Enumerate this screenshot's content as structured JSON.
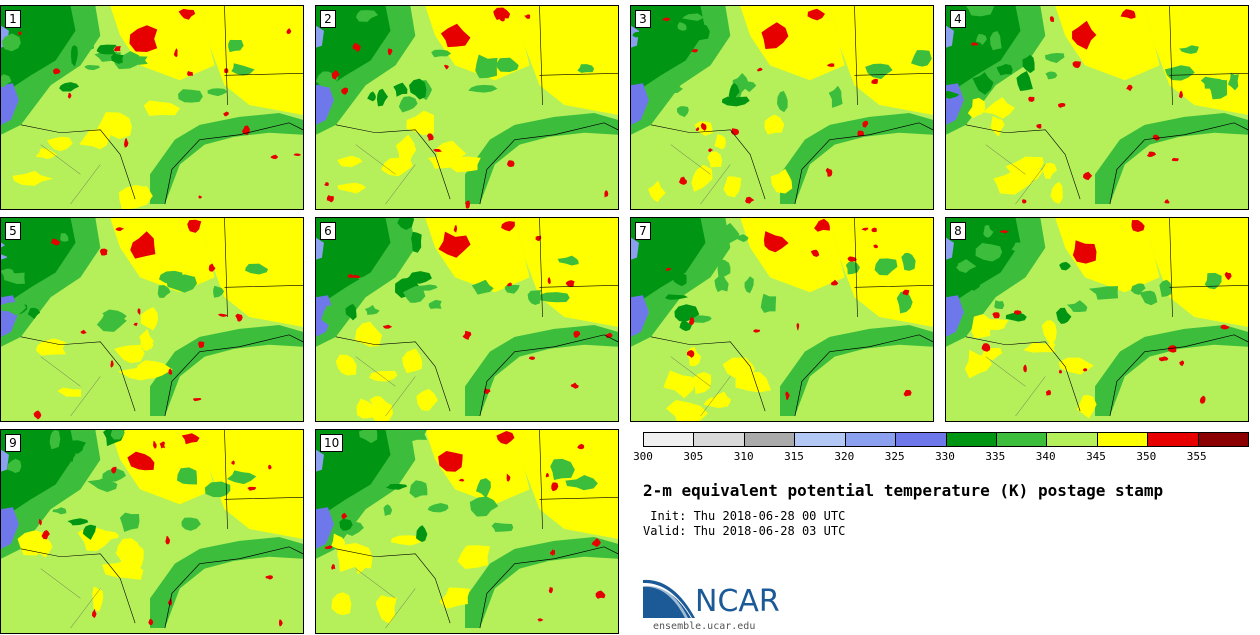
{
  "panels": [
    {
      "label": "1"
    },
    {
      "label": "2"
    },
    {
      "label": "3"
    },
    {
      "label": "4"
    },
    {
      "label": "5"
    },
    {
      "label": "6"
    },
    {
      "label": "7"
    },
    {
      "label": "8"
    },
    {
      "label": "9"
    },
    {
      "label": "10"
    }
  ],
  "colorbar": {
    "ticks": [
      "300",
      "305",
      "310",
      "315",
      "320",
      "325",
      "330",
      "335",
      "340",
      "345",
      "350",
      "355"
    ],
    "colors": [
      "#f0f0f0",
      "#d9d9d9",
      "#aaaaaa",
      "#b4c8f5",
      "#8ca0f0",
      "#6e78eb",
      "#009614",
      "#3cbe3c",
      "#b5f05a",
      "#ffff00",
      "#e60000",
      "#8b0000"
    ]
  },
  "title": "2-m equivalent potential temperature (K) postage stamp",
  "init": " Init: Thu 2018-06-28 00 UTC",
  "valid": "Valid: Thu 2018-06-28 03 UTC",
  "logo": {
    "text": "NCAR",
    "url": "ensemble.ucar.edu",
    "color": "#1b5a97"
  }
}
